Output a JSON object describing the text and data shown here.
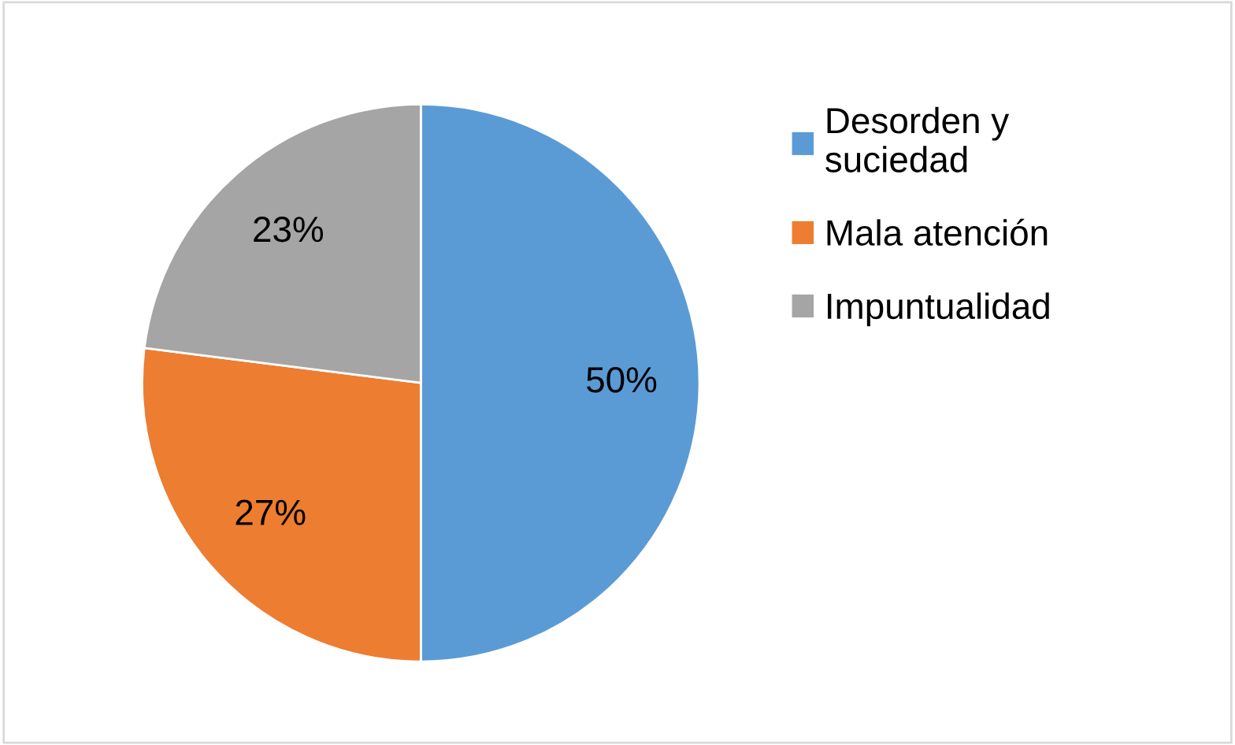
{
  "chart_data": {
    "type": "pie",
    "categories": [
      "Desorden y\nsuciedad",
      "Mala atención",
      "Impuntualidad"
    ],
    "values": [
      50,
      27,
      23
    ],
    "colors": [
      "#5b9bd5",
      "#ed7d31",
      "#a5a5a5"
    ],
    "value_labels": [
      "50%",
      "27%",
      "23%"
    ],
    "legend": "right"
  }
}
